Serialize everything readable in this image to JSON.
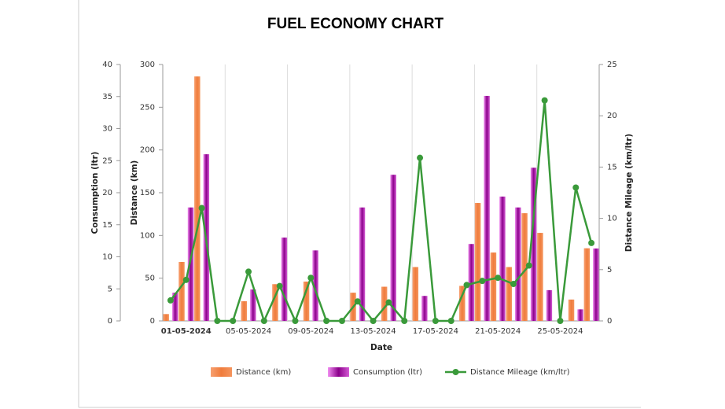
{
  "chart_data": {
    "type": "combo",
    "title": "FUEL ECONOMY CHART",
    "x_label": "Date",
    "y_label": "Distance (km)",
    "y_left_outer_label": "Consumption (ltr)",
    "y2_label": "Distance Mileage (km/ltr)",
    "categories": [
      null,
      "01-05-2024",
      null,
      null,
      null,
      "05-05-2024",
      null,
      null,
      null,
      "09-05-2024",
      null,
      null,
      null,
      "13-05-2024",
      null,
      null,
      null,
      "17-05-2024",
      null,
      null,
      null,
      "21-05-2024",
      null,
      null,
      null,
      "25-05-2024",
      null,
      null
    ],
    "ylim": [
      0,
      300
    ],
    "yticks": [
      0,
      50,
      100,
      150,
      200,
      250,
      300
    ],
    "y3lim": [
      0,
      40
    ],
    "y3ticks": [
      0,
      5,
      10,
      15,
      20,
      25,
      30,
      35,
      40
    ],
    "y2lim": [
      0,
      25
    ],
    "y2ticks": [
      0,
      5,
      10,
      15,
      20,
      25
    ],
    "series": [
      {
        "name": "Distance (km)",
        "type": "bar",
        "axis": "y",
        "color": "#f07c3c",
        "values": [
          8,
          69,
          286,
          0,
          0,
          23,
          0,
          43,
          0,
          46,
          0,
          0,
          33,
          0,
          40,
          0,
          63,
          0,
          0,
          41,
          138,
          80,
          63,
          126,
          103,
          0,
          25,
          85
        ]
      },
      {
        "name": "Consumption (ltr)",
        "type": "bar",
        "axis": "y3",
        "color": "#8b008b",
        "values": [
          4.4,
          17.7,
          26,
          0,
          0,
          4.9,
          0,
          13,
          0,
          11,
          0,
          0,
          17.7,
          0,
          22.8,
          0,
          3.9,
          0,
          0,
          12,
          35.1,
          19.4,
          17.7,
          23.9,
          4.8,
          0,
          1.8,
          11.3
        ]
      },
      {
        "name": "Distance Mileage (km/ltr)",
        "type": "line",
        "axis": "y2",
        "color": "#3a9a3a",
        "values": [
          2.0,
          4.0,
          11.0,
          0,
          0,
          4.8,
          0,
          3.4,
          0,
          4.2,
          0,
          0,
          1.9,
          0,
          1.8,
          0,
          15.9,
          0,
          0,
          3.5,
          3.9,
          4.2,
          3.6,
          5.4,
          21.5,
          0,
          13.0,
          7.6
        ]
      }
    ]
  }
}
